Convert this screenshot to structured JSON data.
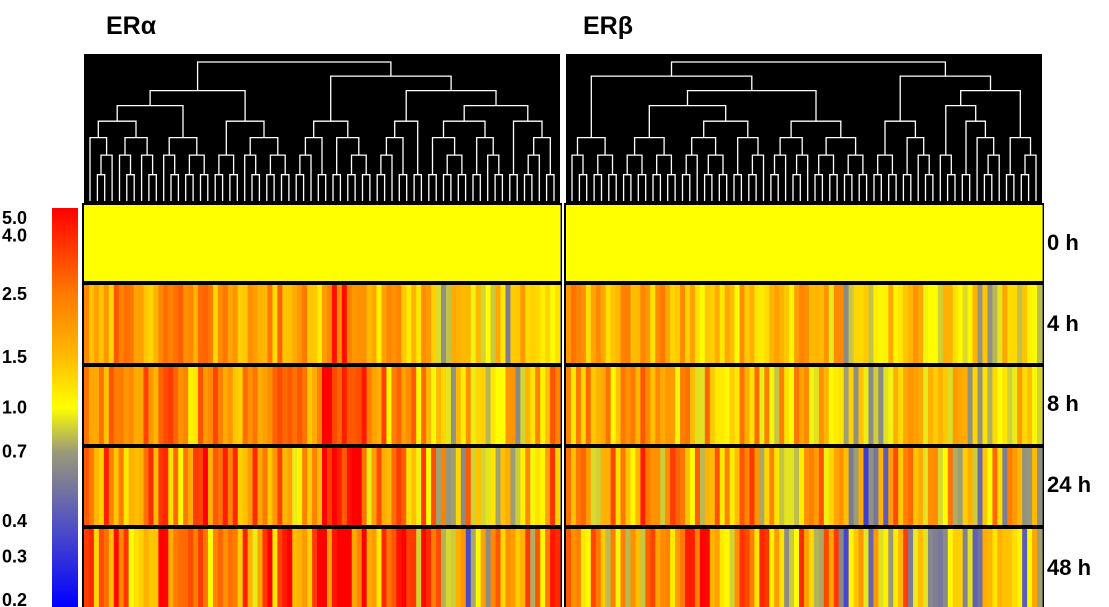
{
  "chart_data": {
    "type": "heatmap",
    "panels": [
      {
        "title": "ERα"
      },
      {
        "title": "ERβ"
      }
    ],
    "rows": [
      "0 h",
      "4 h",
      "8 h",
      "24 h",
      "48 h"
    ],
    "color_scale": {
      "labels": [
        "5.0",
        "4.0",
        "2.5",
        "1.5",
        "1.0",
        "0.7",
        "0.4",
        "0.3",
        "0.2"
      ],
      "values": [
        5.0,
        4.0,
        2.5,
        1.5,
        1.0,
        0.7,
        0.4,
        0.3,
        0.2
      ],
      "stops": [
        {
          "value": 5.0,
          "color": "#ff0000"
        },
        {
          "value": 2.5,
          "color": "#ff7a00"
        },
        {
          "value": 1.5,
          "color": "#ffbb00"
        },
        {
          "value": 1.0,
          "color": "#ffff00"
        },
        {
          "value": 0.7,
          "color": "#9a9a78"
        },
        {
          "value": 0.4,
          "color": "#5555c0"
        },
        {
          "value": 0.2,
          "color": "#0000ff"
        }
      ]
    },
    "colors": {
      "dendrogram_background": "#000000",
      "dendrogram_lines": "#ffffff",
      "baseline": "#ffff00"
    }
  }
}
